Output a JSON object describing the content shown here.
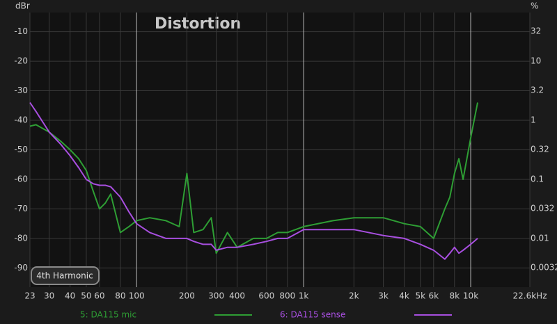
{
  "chart_data": {
    "type": "line",
    "title": "Distortion",
    "y_label": "dBr",
    "y2_label": "%",
    "selector_label": "4th Harmonic",
    "x": [
      23,
      25,
      30,
      35,
      40,
      45,
      50,
      55,
      60,
      65,
      70,
      80,
      90,
      100,
      120,
      150,
      180,
      200,
      220,
      250,
      280,
      300,
      350,
      400,
      500,
      600,
      700,
      800,
      1000,
      1500,
      2000,
      3000,
      4000,
      5000,
      6000,
      7000,
      7500,
      8000,
      8500,
      9000,
      10000,
      11000
    ],
    "series": [
      {
        "name": "5: DA115 mic",
        "color": "#2e9e34",
        "values": [
          -42,
          -41.5,
          -44,
          -47,
          -50,
          -53,
          -57,
          -64,
          -70,
          -68,
          -65,
          -78,
          -76,
          -74,
          -73,
          -74,
          -76,
          -58,
          -78,
          -77,
          -73,
          -85,
          -78,
          -83,
          -80,
          -80,
          -78,
          -78,
          -76,
          -74,
          -73,
          -73,
          -75,
          -76,
          -80,
          -70,
          -66,
          -58,
          -53,
          -60,
          -46,
          -34
        ]
      },
      {
        "name": "6: DA115 sense",
        "color": "#a84fe0",
        "values": [
          -34,
          -37,
          -44,
          -48,
          -52,
          -56,
          -60,
          -61.5,
          -62,
          -62,
          -62.5,
          -66,
          -71,
          -75,
          -78,
          -80,
          -80,
          -80,
          -81,
          -82,
          -82,
          -84,
          -83,
          -83,
          -82,
          -81,
          -80,
          -80,
          -77,
          -77,
          -77,
          -79,
          -80,
          -82,
          -84,
          -87,
          -85,
          -83,
          -85,
          -84,
          -82,
          -80
        ]
      }
    ],
    "xscale": "log",
    "xlim": [
      23,
      22600
    ],
    "xticks": [
      23,
      30,
      40,
      50,
      60,
      80,
      100,
      200,
      300,
      400,
      600,
      800,
      {
        "value": 1000,
        "label": "1k"
      },
      {
        "value": 2000,
        "label": "2k"
      },
      {
        "value": 3000,
        "label": "3k"
      },
      {
        "value": 4000,
        "label": "4k"
      },
      {
        "value": 5000,
        "label": "5k"
      },
      {
        "value": 6000,
        "label": "6k"
      },
      {
        "value": 8000,
        "label": "8k"
      },
      {
        "value": 10000,
        "label": "10k"
      },
      {
        "value": 22600,
        "label": "22.6kHz"
      }
    ],
    "ylim": [
      -96.5,
      -3.5
    ],
    "yticks": [
      -10,
      -20,
      -30,
      -40,
      -50,
      -60,
      -70,
      -80,
      -90
    ],
    "y2scale": "log",
    "y2lim": [
      0.0015,
      66.8
    ],
    "y2ticks": [
      32,
      10,
      3.2,
      1,
      0.32,
      0.1,
      0.032,
      0.01,
      0.0032
    ],
    "grid": true
  }
}
